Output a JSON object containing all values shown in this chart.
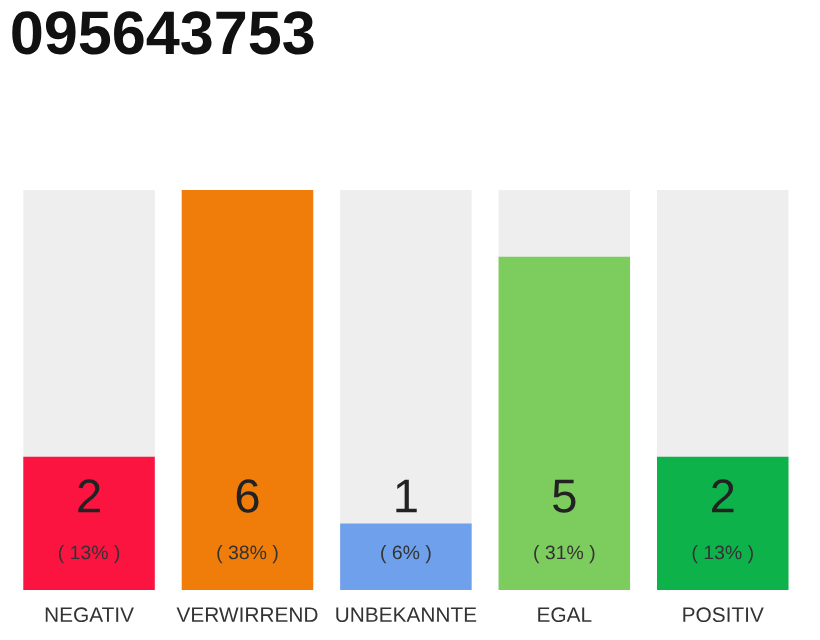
{
  "chart_data": {
    "type": "bar",
    "title": "095643753",
    "categories": [
      "NEGATIV",
      "VERWIRREND",
      "UNBEKANNTE",
      "EGAL",
      "POSITIV"
    ],
    "values": [
      2,
      6,
      1,
      5,
      2
    ],
    "colors": [
      "#fc1440",
      "#f07d0a",
      "#6fa0ec",
      "#7dcc5e",
      "#0db34a"
    ],
    "value_labels": [
      "2\n( 13% )",
      "6\n( 38% )",
      "1\n( 6% )",
      "5\n( 31% )",
      "2\n( 13% )"
    ],
    "ylim": [
      0,
      6
    ],
    "grid": false,
    "legend": false
  }
}
